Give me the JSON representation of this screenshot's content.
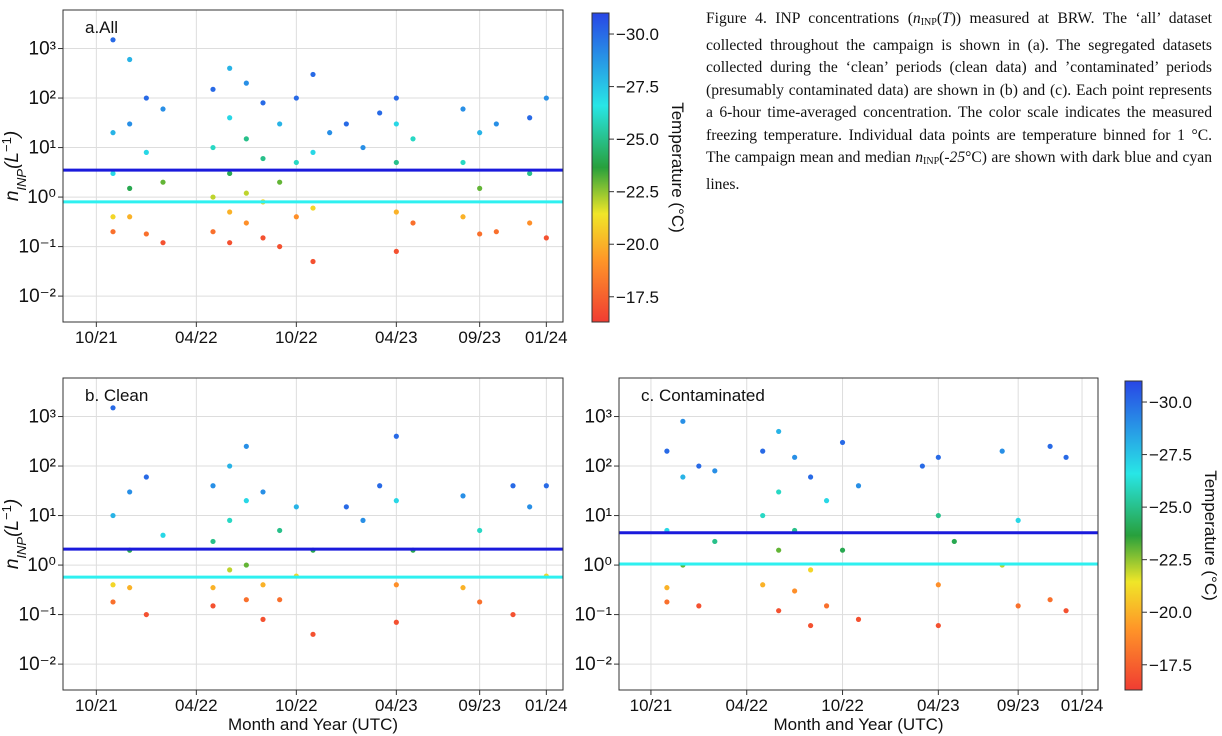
{
  "figure_caption": [
    {
      "text": "Figure 4. INP concentrations (",
      "style": "normal"
    },
    {
      "text": "n",
      "style": "italic"
    },
    {
      "text": "INP",
      "style": "sub"
    },
    {
      "text": "(",
      "style": "normal"
    },
    {
      "text": "T",
      "style": "italic"
    },
    {
      "text": ")) measured at BRW. The ‘all’ dataset collected throughout the campaign is shown in (a). The segregated datasets collected during the ‘clean’ periods (clean data) and ’contaminated’ periods (presumably contaminated data) are shown in (b) and (c). Each point represents a 6-hour time-averaged concentration. The color scale indicates the measured freezing temperature. Individual data points are temperature binned for 1 °C. The campaign mean and median ",
      "style": "normal"
    },
    {
      "text": "n",
      "style": "italic"
    },
    {
      "text": "INP",
      "style": "sub"
    },
    {
      "text": "(",
      "style": "normal"
    },
    {
      "text": "-25",
      "style": "italic"
    },
    {
      "text": "°C) are shown with dark blue and cyan lines.",
      "style": "normal"
    }
  ],
  "chart_data": [
    {
      "type": "scatter",
      "title": "a.All",
      "ylabel": [
        {
          "text": "n",
          "style": "italic"
        },
        {
          "text": "INP",
          "style": "sub"
        },
        {
          "text": "(L",
          "style": "italic"
        },
        {
          "text": "−1",
          "style": "sup"
        },
        {
          "text": ")",
          "style": "italic"
        }
      ],
      "x": [
        "11/21",
        "11/21",
        "11/21",
        "11/21",
        "11/21",
        "12/21",
        "12/21",
        "12/21",
        "12/21",
        "01/22",
        "01/22",
        "01/22",
        "02/22",
        "02/22",
        "02/22",
        "05/22",
        "05/22",
        "05/22",
        "05/22",
        "06/22",
        "06/22",
        "06/22",
        "06/22",
        "06/22",
        "07/22",
        "07/22",
        "07/22",
        "07/22",
        "08/22",
        "08/22",
        "08/22",
        "08/22",
        "09/22",
        "09/22",
        "09/22",
        "10/22",
        "10/22",
        "10/22",
        "11/22",
        "11/22",
        "11/22",
        "11/22",
        "12/22",
        "01/23",
        "02/23",
        "03/23",
        "04/23",
        "04/23",
        "04/23",
        "04/23",
        "04/23",
        "05/23",
        "05/23",
        "08/23",
        "08/23",
        "08/23",
        "09/23",
        "09/23",
        "09/23",
        "10/23",
        "10/23",
        "12/23",
        "12/23",
        "12/23",
        "01/24",
        "01/24"
      ],
      "values": [
        1500,
        20,
        3,
        0.4,
        0.2,
        600,
        30,
        1.5,
        0.4,
        100,
        8,
        0.18,
        60,
        2,
        0.12,
        150,
        10,
        1,
        0.2,
        400,
        40,
        3,
        0.5,
        0.12,
        200,
        15,
        1.2,
        0.3,
        80,
        6,
        0.8,
        0.15,
        30,
        2,
        0.1,
        100,
        5,
        0.4,
        300,
        8,
        0.6,
        0.05,
        20,
        30,
        10,
        50,
        100,
        30,
        5,
        0.5,
        0.08,
        15,
        0.3,
        60,
        5,
        0.4,
        20,
        1.5,
        0.18,
        30,
        0.2,
        40,
        3,
        0.3,
        100,
        0.15
      ],
      "temperature": [
        -30,
        -28,
        -27,
        -21,
        -18,
        -28,
        -29,
        -24,
        -20,
        -30,
        -27,
        -18,
        -29,
        -23,
        -17,
        -30,
        -26,
        -22,
        -18,
        -28,
        -27,
        -24,
        -20,
        -17,
        -29,
        -25,
        -22,
        -19,
        -30,
        -25,
        -21,
        -17,
        -28,
        -23,
        -17,
        -30,
        -26,
        -19,
        -30,
        -27,
        -21,
        -17,
        -29,
        -30,
        -29,
        -30,
        -30,
        -27,
        -25,
        -20,
        -17,
        -26,
        -18,
        -29,
        -26,
        -20,
        -28,
        -23,
        -18,
        -29,
        -18,
        -30,
        -25,
        -19,
        -29,
        -17
      ],
      "xlim": [
        "08/21",
        "02/24"
      ],
      "xticks": [
        "10/21",
        "04/22",
        "10/22",
        "04/23",
        "09/23",
        "01/24"
      ],
      "ylim": [
        0.003,
        6000
      ],
      "log_y": true,
      "grid": true,
      "yticks": [
        {
          "value": 0.01,
          "label": "10⁻²"
        },
        {
          "value": 0.1,
          "label": "10⁻¹"
        },
        {
          "value": 1,
          "label": "10⁰"
        },
        {
          "value": 10,
          "label": "10¹"
        },
        {
          "value": 100,
          "label": "10²"
        },
        {
          "value": 1000,
          "label": "10³"
        }
      ],
      "mean": 3.5,
      "mean_color": "#1a1adc",
      "median": 0.8,
      "median_color": "#2ef0f0",
      "clim": [
        -16.3,
        -31
      ],
      "colorbar": {
        "label": "Temperature (°C)",
        "ticks": [
          {
            "value": -30,
            "label": "−30.0"
          },
          {
            "value": -27.5,
            "label": "−27.5"
          },
          {
            "value": -25,
            "label": "−25.0"
          },
          {
            "value": -22.5,
            "label": "−22.5"
          },
          {
            "value": -20,
            "label": "−20.0"
          },
          {
            "value": -17.5,
            "label": "−17.5"
          }
        ]
      }
    },
    {
      "type": "scatter",
      "title": "b. Clean",
      "xlabel": "Month and Year (UTC)",
      "ylabel": [
        {
          "text": "n",
          "style": "italic"
        },
        {
          "text": "INP",
          "style": "sub"
        },
        {
          "text": "(L",
          "style": "italic"
        },
        {
          "text": "−1",
          "style": "sup"
        },
        {
          "text": ")",
          "style": "italic"
        }
      ],
      "x": [
        "11/21",
        "11/21",
        "11/21",
        "11/21",
        "12/21",
        "12/21",
        "12/21",
        "01/22",
        "01/22",
        "02/22",
        "05/22",
        "05/22",
        "05/22",
        "05/22",
        "06/22",
        "06/22",
        "06/22",
        "07/22",
        "07/22",
        "07/22",
        "07/22",
        "08/22",
        "08/22",
        "08/22",
        "09/22",
        "09/22",
        "10/22",
        "10/22",
        "11/22",
        "11/22",
        "01/23",
        "02/23",
        "03/23",
        "04/23",
        "04/23",
        "04/23",
        "04/23",
        "05/23",
        "08/23",
        "08/23",
        "09/23",
        "09/23",
        "11/23",
        "11/23",
        "12/23",
        "01/24",
        "01/24"
      ],
      "values": [
        1500,
        10,
        0.4,
        0.18,
        30,
        2,
        0.35,
        60,
        0.1,
        4,
        40,
        3,
        0.35,
        0.15,
        100,
        8,
        0.8,
        250,
        20,
        1,
        0.2,
        30,
        0.4,
        0.08,
        5,
        0.2,
        15,
        0.6,
        2,
        0.04,
        15,
        8,
        40,
        400,
        20,
        0.4,
        0.07,
        2,
        25,
        0.35,
        5,
        0.18,
        40,
        0.1,
        15,
        40,
        0.6
      ],
      "temperature": [
        -30,
        -28,
        -21,
        -18,
        -29,
        -24,
        -20,
        -30,
        -17,
        -27,
        -29,
        -25,
        -20,
        -17,
        -28,
        -26,
        -22,
        -29,
        -27,
        -23,
        -18,
        -29,
        -20,
        -17,
        -25,
        -18,
        -28,
        -21,
        -24,
        -17,
        -30,
        -29,
        -30,
        -30,
        -27,
        -19,
        -17,
        -24,
        -29,
        -20,
        -26,
        -18,
        -30,
        -17,
        -29,
        -30,
        -21
      ],
      "xlim": [
        "08/21",
        "02/24"
      ],
      "xticks": [
        "10/21",
        "04/22",
        "10/22",
        "04/23",
        "09/23",
        "01/24"
      ],
      "ylim": [
        0.003,
        6000
      ],
      "log_y": true,
      "grid": true,
      "yticks": [
        {
          "value": 0.01,
          "label": "10⁻²"
        },
        {
          "value": 0.1,
          "label": "10⁻¹"
        },
        {
          "value": 1,
          "label": "10⁰"
        },
        {
          "value": 10,
          "label": "10¹"
        },
        {
          "value": 100,
          "label": "10²"
        },
        {
          "value": 1000,
          "label": "10³"
        }
      ],
      "mean": 2.1,
      "mean_color": "#1a1adc",
      "median": 0.57,
      "median_color": "#2ef0f0",
      "clim": [
        -16.3,
        -31
      ]
    },
    {
      "type": "scatter",
      "title": "c. Contaminated",
      "xlabel": "Month and Year (UTC)",
      "x": [
        "11/21",
        "11/21",
        "11/21",
        "11/21",
        "12/21",
        "12/21",
        "12/21",
        "01/22",
        "01/22",
        "02/22",
        "02/22",
        "05/22",
        "05/22",
        "05/22",
        "06/22",
        "06/22",
        "06/22",
        "06/22",
        "07/22",
        "07/22",
        "07/22",
        "08/22",
        "08/22",
        "08/22",
        "09/22",
        "09/22",
        "10/22",
        "10/22",
        "11/22",
        "11/22",
        "03/23",
        "04/23",
        "04/23",
        "04/23",
        "04/23",
        "05/23",
        "08/23",
        "08/23",
        "09/23",
        "09/23",
        "11/23",
        "11/23",
        "12/23",
        "12/23"
      ],
      "values": [
        200,
        5,
        0.35,
        0.18,
        800,
        60,
        1,
        100,
        0.15,
        80,
        3,
        200,
        10,
        0.4,
        500,
        30,
        2,
        0.12,
        150,
        5,
        0.3,
        60,
        0.8,
        0.06,
        20,
        0.15,
        300,
        2,
        40,
        0.08,
        100,
        150,
        10,
        0.4,
        0.06,
        3,
        200,
        1,
        8,
        0.15,
        250,
        0.2,
        150,
        0.12
      ],
      "temperature": [
        -30,
        -27,
        -20,
        -18,
        -29,
        -28,
        -23,
        -30,
        -17,
        -29,
        -25,
        -30,
        -26,
        -20,
        -28,
        -26,
        -23,
        -17,
        -29,
        -25,
        -19,
        -30,
        -21,
        -17,
        -27,
        -18,
        -30,
        -24,
        -29,
        -17,
        -30,
        -30,
        -25,
        -19,
        -17,
        -24,
        -29,
        -22,
        -27,
        -18,
        -30,
        -18,
        -30,
        -17
      ],
      "xlim": [
        "08/21",
        "02/24"
      ],
      "xticks": [
        "10/21",
        "04/22",
        "10/22",
        "04/23",
        "09/23",
        "01/24"
      ],
      "ylim": [
        0.003,
        6000
      ],
      "log_y": true,
      "grid": true,
      "yticks": [
        {
          "value": 0.01,
          "label": "10⁻²"
        },
        {
          "value": 0.1,
          "label": "10⁻¹"
        },
        {
          "value": 1,
          "label": "10⁰"
        },
        {
          "value": 10,
          "label": "10¹"
        },
        {
          "value": 100,
          "label": "10²"
        },
        {
          "value": 1000,
          "label": "10³"
        }
      ],
      "mean": 4.5,
      "mean_color": "#1a1adc",
      "median": 1.05,
      "median_color": "#2ef0f0",
      "clim": [
        -16.3,
        -31
      ],
      "colorbar": {
        "label": "Temperature (°C)",
        "ticks": [
          {
            "value": -30,
            "label": "−30.0"
          },
          {
            "value": -27.5,
            "label": "−27.5"
          },
          {
            "value": -25,
            "label": "−25.0"
          },
          {
            "value": -22.5,
            "label": "−22.5"
          },
          {
            "value": -20,
            "label": "−20.0"
          },
          {
            "value": -17.5,
            "label": "−17.5"
          }
        ]
      }
    }
  ]
}
